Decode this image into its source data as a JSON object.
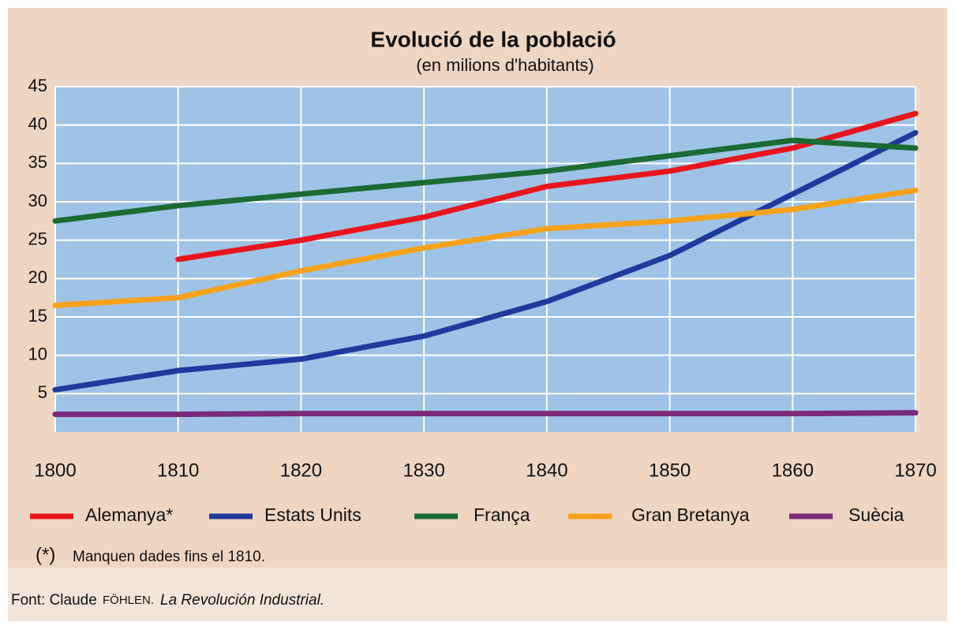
{
  "chart_data": {
    "type": "line",
    "title": "Evolució de la població",
    "subtitle": "(en milions d'habitants)",
    "x": [
      1800,
      1810,
      1820,
      1830,
      1840,
      1850,
      1860,
      1870
    ],
    "xlim": [
      1800,
      1870
    ],
    "xticks": [
      1800,
      1810,
      1820,
      1830,
      1840,
      1850,
      1860,
      1870
    ],
    "ylim": [
      0,
      45
    ],
    "yticks": [
      5,
      10,
      15,
      20,
      25,
      30,
      35,
      40,
      45
    ],
    "grid": true,
    "legend": "bottom",
    "series": [
      {
        "name": "Alemanya*",
        "color": "#e8151c",
        "values": [
          null,
          22.5,
          25,
          28,
          32,
          34,
          37,
          41.5
        ]
      },
      {
        "name": "Estats Units",
        "color": "#1f3a9c",
        "values": [
          5.5,
          8,
          9.5,
          12.5,
          17,
          23,
          31,
          39
        ]
      },
      {
        "name": "França",
        "color": "#1b6b34",
        "values": [
          27.5,
          29.5,
          31,
          32.5,
          34,
          36,
          38,
          37
        ]
      },
      {
        "name": "Gran Bretanya",
        "color": "#f7a21b",
        "values": [
          16.5,
          17.5,
          21,
          24,
          26.5,
          27.5,
          29,
          31.5
        ]
      },
      {
        "name": "Suècia",
        "color": "#7a2a7a",
        "values": [
          2.3,
          2.3,
          2.4,
          2.4,
          2.4,
          2.4,
          2.4,
          2.5
        ]
      }
    ],
    "footnote_mark": "(*)",
    "footnote": "Manquen dades fins el 1810.",
    "source_prefix": "Font: Claude",
    "source_author": "FÖHLEN.",
    "source_title": "La Revolución Industrial."
  }
}
